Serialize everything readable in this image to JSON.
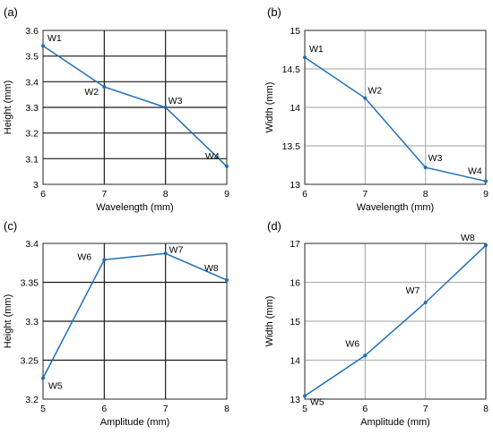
{
  "chart_data": [
    {
      "type": "line",
      "panel": "(a)",
      "xlabel": "Wavelength (mm)",
      "ylabel": "Height (mm)",
      "xlim": [
        6,
        9
      ],
      "ylim": [
        3,
        3.6
      ],
      "xticks": [
        6,
        7,
        8,
        9
      ],
      "yticks": [
        3,
        3.1,
        3.2,
        3.3,
        3.4,
        3.5,
        3.6
      ],
      "ytick_labels": [
        "3",
        "3.1",
        "3.2",
        "3.3",
        "3.4",
        "3.5",
        "3.6"
      ],
      "grid_color": "#1a1a1a",
      "series": [
        {
          "color": "#1f6fb4",
          "x": [
            6,
            7,
            8,
            9
          ],
          "y": [
            3.54,
            3.38,
            3.3,
            3.07
          ],
          "labels": [
            "W1",
            "W2",
            "W3",
            "W4"
          ]
        }
      ]
    },
    {
      "type": "line",
      "panel": "(b)",
      "xlabel": "Wavelength (mm)",
      "ylabel": "Width (mm)",
      "xlim": [
        6,
        9
      ],
      "ylim": [
        13,
        15
      ],
      "xticks": [
        6,
        7,
        8,
        9
      ],
      "yticks": [
        13,
        13.5,
        14,
        14.5,
        15
      ],
      "ytick_labels": [
        "13",
        "13.5",
        "14",
        "14.5",
        "15"
      ],
      "grid_color": "#b3b3b3",
      "series": [
        {
          "color": "#1f6fb4",
          "x": [
            6,
            7,
            8,
            9
          ],
          "y": [
            14.65,
            14.12,
            13.22,
            13.04
          ],
          "labels": [
            "W1",
            "W2",
            "W3",
            "W4"
          ]
        }
      ]
    },
    {
      "type": "line",
      "panel": "(c)",
      "xlabel": "Amplitude (mm)",
      "ylabel": "Height (mm)",
      "xlim": [
        5,
        8
      ],
      "ylim": [
        3.2,
        3.4
      ],
      "xticks": [
        5,
        6,
        7,
        8
      ],
      "yticks": [
        3.2,
        3.25,
        3.3,
        3.35,
        3.4
      ],
      "ytick_labels": [
        "3.2",
        "3.25",
        "3.3",
        "3.35",
        "3.4"
      ],
      "grid_color": "#1a1a1a",
      "series": [
        {
          "color": "#1f6fb4",
          "x": [
            5,
            6,
            7,
            8
          ],
          "y": [
            3.227,
            3.379,
            3.387,
            3.353
          ],
          "labels": [
            "W5",
            "W6",
            "W7",
            "W8"
          ]
        }
      ]
    },
    {
      "type": "line",
      "panel": "(d)",
      "xlabel": "Amplitude (mm)",
      "ylabel": "Width (mm)",
      "xlim": [
        5,
        8
      ],
      "ylim": [
        13,
        17
      ],
      "xticks": [
        5,
        6,
        7,
        8
      ],
      "yticks": [
        13,
        14,
        15,
        16,
        17
      ],
      "ytick_labels": [
        "13",
        "14",
        "15",
        "16",
        "17"
      ],
      "grid_color": "#b3b3b3",
      "series": [
        {
          "color": "#1f6fb4",
          "x": [
            5,
            6,
            7,
            8
          ],
          "y": [
            13.08,
            14.12,
            15.48,
            16.95
          ],
          "labels": [
            "W5",
            "W6",
            "W7",
            "W8"
          ]
        }
      ]
    }
  ]
}
